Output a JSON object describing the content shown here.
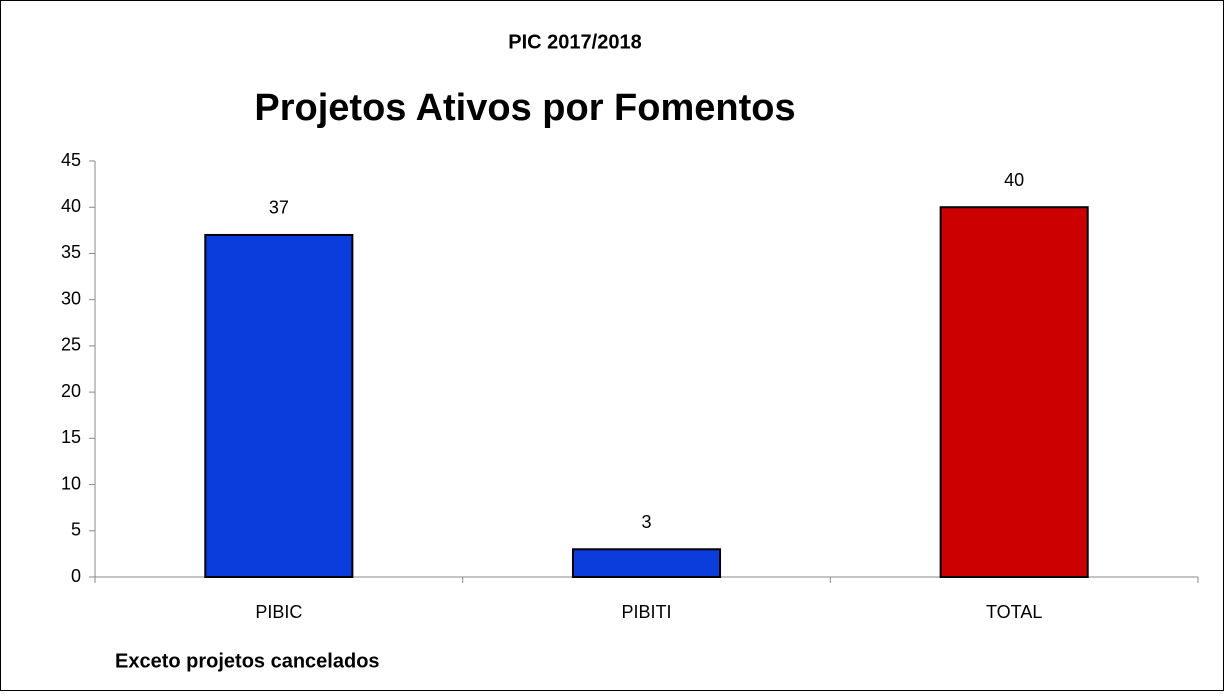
{
  "chart_data": {
    "type": "bar",
    "supertitle": "PIC 2017/2018",
    "title": "Projetos Ativos por Fomentos",
    "note": "Exceto projetos cancelados",
    "categories": [
      "PIBIC",
      "PIBITI",
      "TOTAL"
    ],
    "values": [
      37,
      3,
      40
    ],
    "colors": [
      "#0a3ddb",
      "#0a3ddb",
      "#cc0000"
    ],
    "ylim": [
      0,
      45
    ],
    "yticks": [
      0,
      5,
      10,
      15,
      20,
      25,
      30,
      35,
      40,
      45
    ],
    "grid": false
  }
}
